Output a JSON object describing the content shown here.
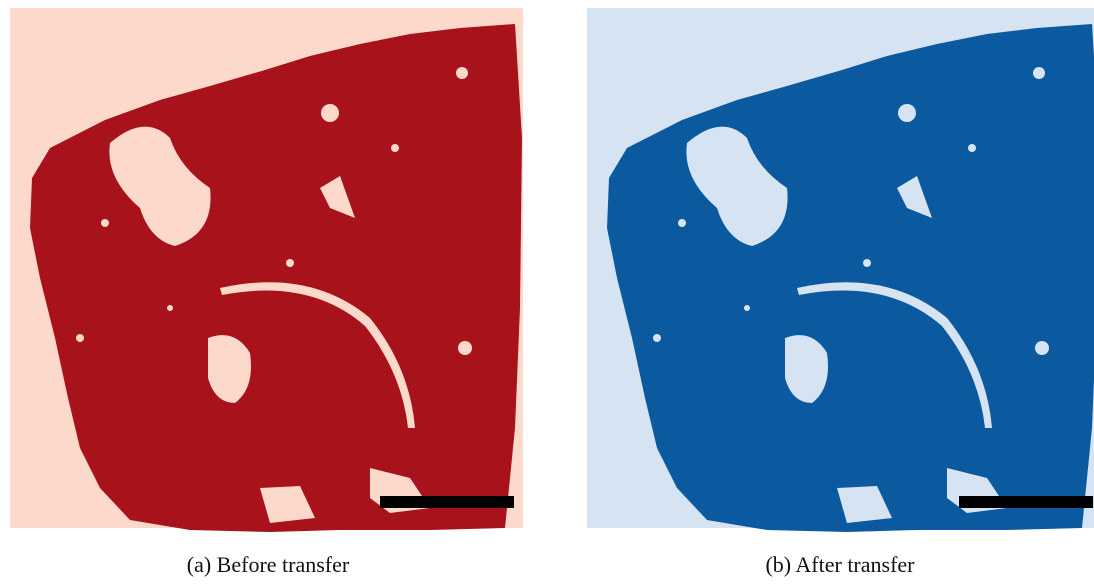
{
  "figure": {
    "panels": [
      {
        "caption": "(a) Before transfer"
      },
      {
        "caption": "(b) After transfer"
      }
    ]
  }
}
